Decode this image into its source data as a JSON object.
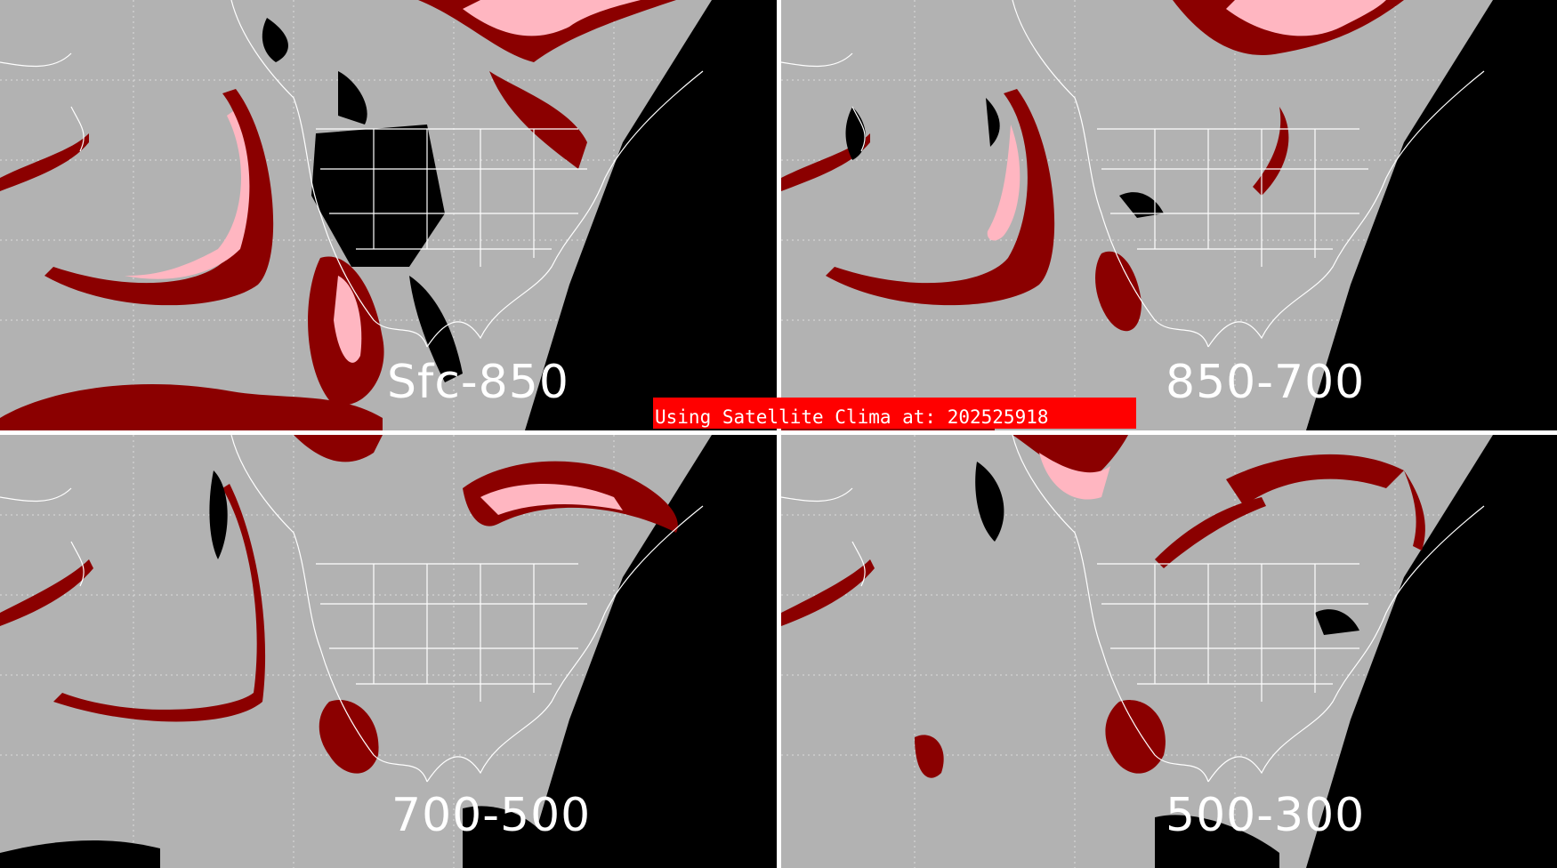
{
  "colors": {
    "background": "#b2b2b2",
    "space": "#000000",
    "low_cloud": "#8b0000",
    "mid_anomaly": "#9a7070",
    "high_anomaly": "#ffb6c1",
    "coastline": "#ffffff",
    "divider": "#ffffff",
    "banner_bg": "#ff0000",
    "banner_text": "#ffffff"
  },
  "panels": [
    {
      "id": "sfc-850",
      "label": "Sfc-850"
    },
    {
      "id": "850-700",
      "label": "850-700"
    },
    {
      "id": "700-500",
      "label": "700-500"
    },
    {
      "id": "500-300",
      "label": "500-300"
    }
  ],
  "banner": {
    "text": "Using Satellite Clima at: 202525918"
  }
}
